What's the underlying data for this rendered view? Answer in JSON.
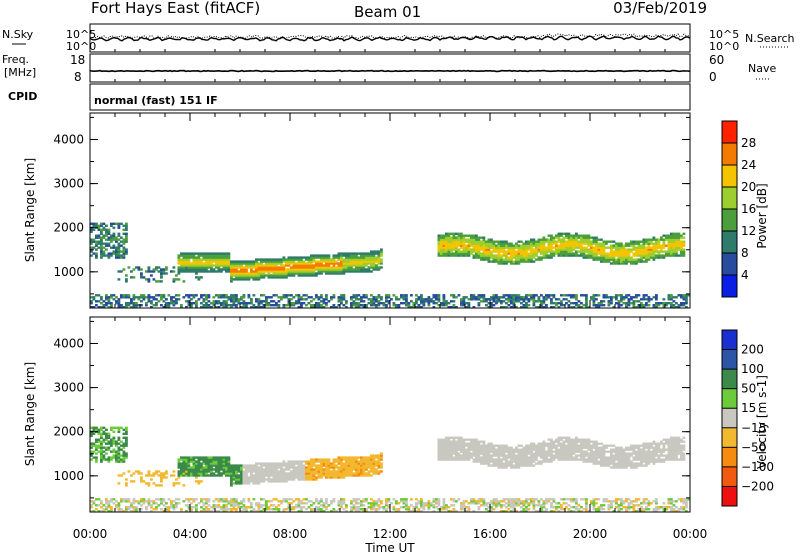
{
  "header": {
    "station": "Fort Hays East (fitACF)",
    "beam": "Beam 01",
    "date": "03/Feb/2019"
  },
  "noise_panel": {
    "left_label": "N.Sky",
    "left_ticks": [
      "10^5",
      "10^0"
    ],
    "right_label": "N.Search",
    "right_ticks": [
      "10^5",
      "10^0"
    ]
  },
  "freq_panel": {
    "left_label_1": "Freq.",
    "left_label_2": "[MHz]",
    "left_ticks": [
      "18",
      "8"
    ],
    "right_label": "Nave",
    "right_ticks": [
      "60",
      "0"
    ]
  },
  "cpid": {
    "label": "CPID",
    "value": "normal (fast) 151 IF"
  },
  "chart_data": [
    {
      "type": "heatmap",
      "parameter": "Power",
      "ylabel": "Slant Range [km]",
      "yticks": [
        "4000",
        "3000",
        "2000",
        "1000"
      ],
      "colorbar_label": "Power [dB]",
      "colorbar_ticks": [
        "28",
        "24",
        "20",
        "16",
        "12",
        "8",
        "4"
      ],
      "colorbar_colors": [
        "#0a1ee6",
        "#274b9e",
        "#2e7a6b",
        "#4a9e3c",
        "#9ccf2e",
        "#f5c400",
        "#f57a00",
        "#ff2200"
      ],
      "xlim": [
        "00:00",
        "24:00"
      ],
      "ylim": [
        180,
        4600
      ],
      "features": [
        {
          "name": "main echo band",
          "start_hour": 5.5,
          "end_hour": 11.5,
          "range_km": [
            900,
            1350
          ],
          "peak_db": 28
        },
        {
          "name": "post-14UT band",
          "start_hour": 13.8,
          "end_hour": 23.8,
          "range_km": [
            1200,
            1800
          ],
          "peak_db": 22
        },
        {
          "name": "near-range ground clutter",
          "start_hour": 0,
          "end_hour": 24,
          "range_km": [
            200,
            500
          ],
          "peak_db": 12
        }
      ]
    },
    {
      "type": "heatmap",
      "parameter": "Velocity",
      "ylabel": "Slant Range [km]",
      "yticks": [
        "4000",
        "3000",
        "2000",
        "1000"
      ],
      "colorbar_label": "Velocity [m s-1]",
      "colorbar_ticks": [
        "200",
        "100",
        "50",
        "15",
        "-15",
        "-50",
        "-100",
        "-200"
      ],
      "colorbar_colors": [
        "#1a2fd0",
        "#2c55a8",
        "#3b8a4a",
        "#6ccb3a",
        "#c8c8c0",
        "#f2b830",
        "#f58c10",
        "#f25a10",
        "#ee1010"
      ],
      "xlabel": "Time UT",
      "xticks": [
        "00:00",
        "04:00",
        "08:00",
        "12:00",
        "16:00",
        "20:00",
        "00:00"
      ],
      "xlim": [
        "00:00",
        "24:00"
      ],
      "ylim": [
        180,
        4600
      ]
    }
  ]
}
